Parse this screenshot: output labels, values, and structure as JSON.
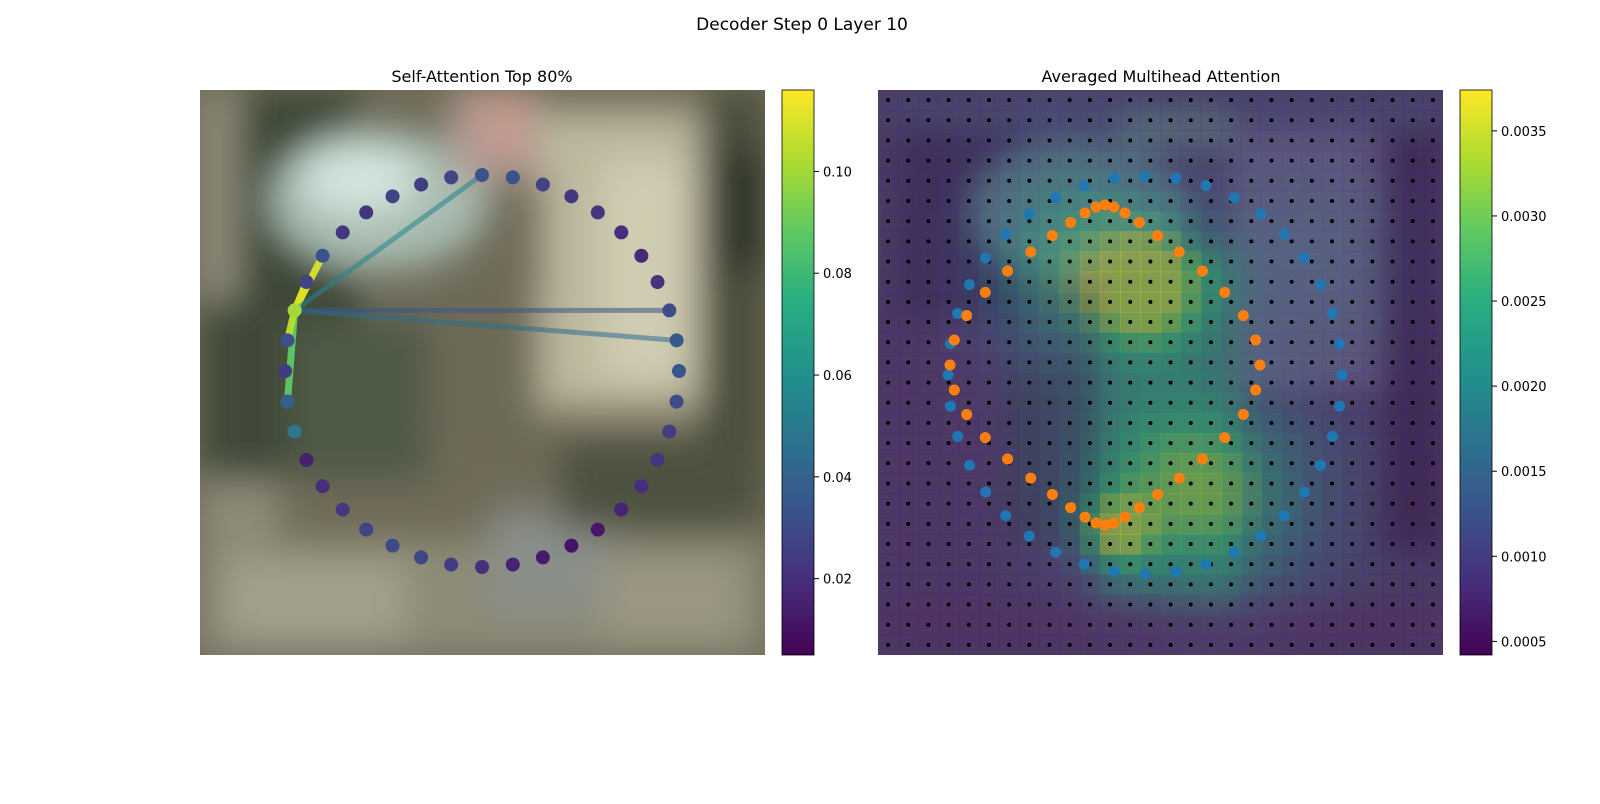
{
  "figure": {
    "title": "Decoder Step 0 Layer 10"
  },
  "left_panel": {
    "title": "Self-Attention Top 80%",
    "colorbar_ticks": [
      "0.02",
      "0.04",
      "0.06",
      "0.08",
      "0.10"
    ]
  },
  "right_panel": {
    "title": "Averaged Multihead Attention",
    "colorbar_ticks": [
      "0.0005",
      "0.0010",
      "0.0015",
      "0.0020",
      "0.0025",
      "0.0030",
      "0.0035"
    ]
  },
  "chart_data": [
    {
      "type": "scatter",
      "title": "Self-Attention Top 80%",
      "description_of_marks": "contour points colored by self-attention weight, with lines from the query point to its top attended points",
      "colormap": "viridis",
      "colorbar": {
        "min": 0.005,
        "max": 0.116,
        "ticks": [
          0.02,
          0.04,
          0.06,
          0.08,
          0.1
        ]
      },
      "background": "blurred photo",
      "n_points": 40,
      "query_point": 32,
      "attention_lines": [
        {
          "to": 29,
          "weight": 0.088
        },
        {
          "to": 31,
          "weight": 0.105
        },
        {
          "to": 33,
          "weight": 0.114
        },
        {
          "to": 34,
          "weight": 0.11
        },
        {
          "to": 0,
          "weight": 0.055
        },
        {
          "to": 9,
          "weight": 0.045
        },
        {
          "to": 8,
          "weight": 0.035
        }
      ],
      "point_weights": [
        0.033,
        0.032,
        0.027,
        0.023,
        0.022,
        0.019,
        0.017,
        0.021,
        0.031,
        0.036,
        0.034,
        0.03,
        0.025,
        0.023,
        0.019,
        0.016,
        0.012,
        0.011,
        0.013,
        0.016,
        0.02,
        0.025,
        0.028,
        0.03,
        0.028,
        0.023,
        0.019,
        0.015,
        0.049,
        0.038,
        0.024,
        0.032,
        0.1,
        0.027,
        0.033,
        0.023,
        0.022,
        0.027,
        0.025,
        0.028
      ]
    },
    {
      "type": "heatmap",
      "title": "Averaged Multihead Attention",
      "colormap": "viridis",
      "colorbar": {
        "min": 0.00042,
        "max": 0.00374,
        "ticks": [
          0.0005,
          0.001,
          0.0015,
          0.002,
          0.0025,
          0.003,
          0.0035
        ]
      },
      "grid": {
        "rows": 28,
        "cols": 28
      },
      "reference_points_marked": true,
      "series": [
        {
          "color": "#1f77b4",
          "n_points": 40
        },
        {
          "color": "#ff7f0e",
          "n_points": 40
        }
      ]
    }
  ]
}
